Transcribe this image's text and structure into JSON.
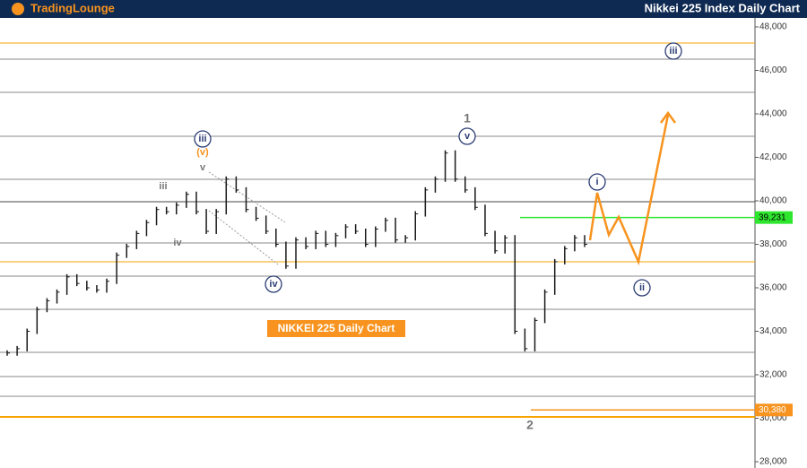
{
  "header": {
    "logo": "TradingLounge",
    "title": "Nikkei 225 Index Daily Chart"
  },
  "chart_data": {
    "type": "price-bars",
    "title": "NIKKEI 225 Daily Chart",
    "color": "#1a1a1a",
    "values": [
      33000,
      33200,
      34000,
      35000,
      35400,
      35800,
      36500,
      36200,
      36000,
      35900,
      36300,
      37500,
      37900,
      38500,
      39000,
      39600,
      39500,
      39800,
      40300,
      39500,
      38600,
      39500,
      41000,
      40500,
      39600,
      39200,
      38600,
      38000,
      37000,
      38200,
      37900,
      38500,
      38000,
      38400,
      38800,
      38600,
      38000,
      38700,
      39100,
      38200,
      38300,
      39400,
      40500,
      41000,
      42200,
      41000,
      40500,
      39700,
      38500,
      37700,
      38300,
      34000,
      33200,
      34500,
      35800,
      37200,
      37800,
      38300,
      38000
    ],
    "ylim": [
      28000,
      48000
    ],
    "yticks": [
      {
        "value": 28000,
        "label": "28,000"
      },
      {
        "value": 30000,
        "label": "30,000"
      },
      {
        "value": 32000,
        "label": "32,000"
      },
      {
        "value": 34000,
        "label": "34,000"
      },
      {
        "value": 36000,
        "label": "36,000"
      },
      {
        "value": 38000,
        "label": "38,000"
      },
      {
        "value": 40000,
        "label": "40,000"
      },
      {
        "value": 42000,
        "label": "42,000"
      },
      {
        "value": 44000,
        "label": "44,000"
      },
      {
        "value": 46000,
        "label": "46,000"
      },
      {
        "value": 48000,
        "label": "48,000"
      }
    ],
    "levels": [
      {
        "value": 46515,
        "color": "#8a8a8a"
      },
      {
        "value": 44990,
        "color": "#8a8a8a"
      },
      {
        "value": 42969,
        "color": "#8a8a8a"
      },
      {
        "value": 40990,
        "color": "#8a8a8a"
      },
      {
        "value": 39959,
        "color": "#444444"
      },
      {
        "value": 38062,
        "color": "#8a8a8a"
      },
      {
        "value": 36536,
        "color": "#8a8a8a"
      },
      {
        "value": 35010,
        "color": "#8a8a8a"
      },
      {
        "value": 33031,
        "color": "#8a8a8a"
      },
      {
        "value": 31918,
        "color": "#8a8a8a"
      },
      {
        "value": 31010,
        "color": "#8a8a8a"
      },
      {
        "value": 47258,
        "color": "#f7a400"
      },
      {
        "value": 37196,
        "color": "#f7a400"
      },
      {
        "value": 30062,
        "color": "#f7a400"
      }
    ],
    "price_labels": [
      {
        "value": 39231,
        "label": "39,231",
        "color": "#2ee62e"
      },
      {
        "value": 30380,
        "label": "30,380",
        "color": "#f7931e"
      }
    ],
    "annotations": [
      "iii",
      "(v)",
      "v",
      "iii",
      "iv",
      "iv",
      "1",
      "v",
      "i",
      "ii",
      "iii",
      "2"
    ]
  }
}
